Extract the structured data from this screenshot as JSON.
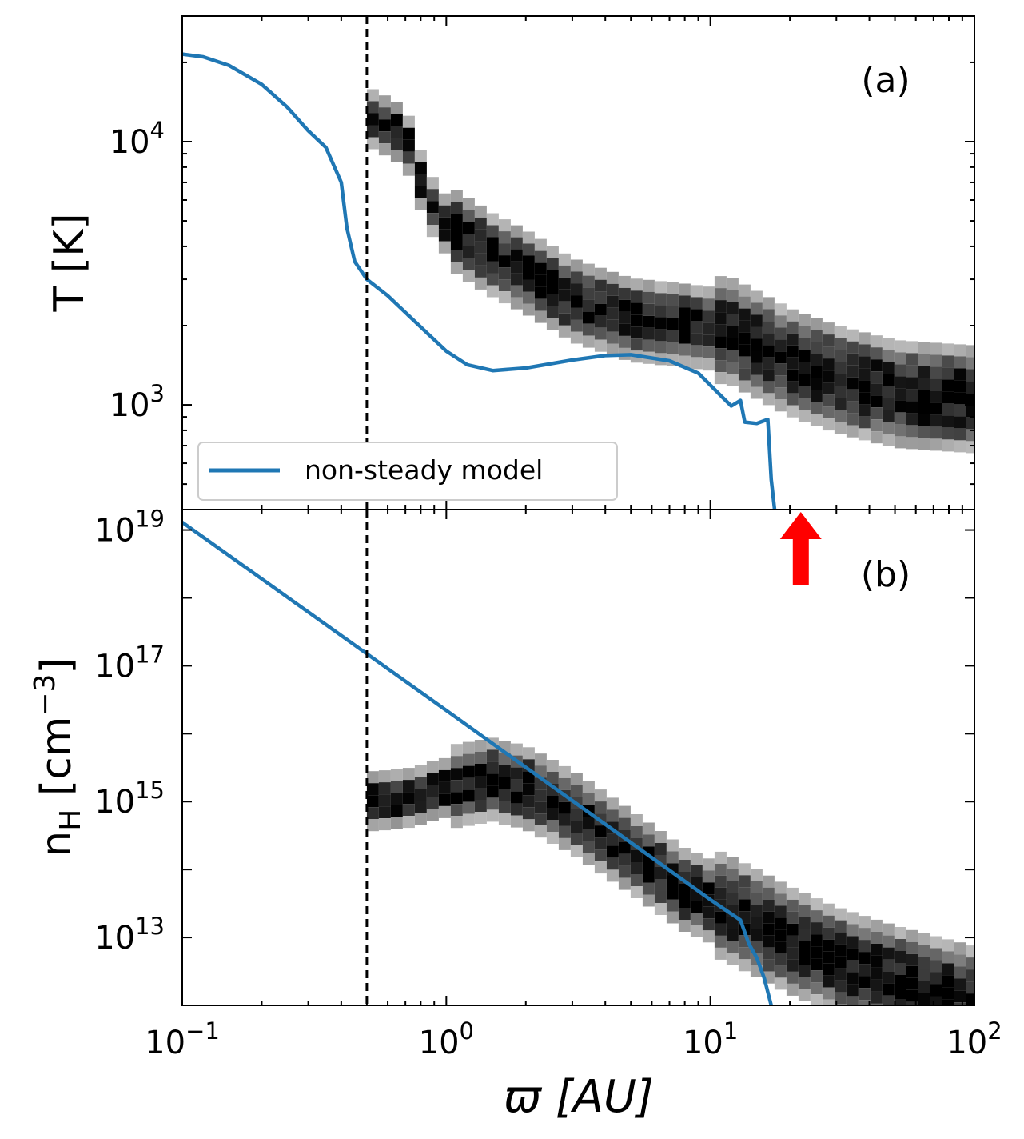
{
  "colors": {
    "model_line": "#1f77b4",
    "sim_heatmap": "#000000",
    "marker_line": "#000000",
    "arrow": "#ff0000",
    "frame": "#000000",
    "legend_border": "#cccccc"
  },
  "chart_data": [
    {
      "type": "line",
      "panel_label": "(a)",
      "xscale": "log",
      "yscale": "log",
      "xlim": [
        0.1,
        100
      ],
      "ylim": [
        400,
        30000
      ],
      "ylabel": "T [K]",
      "yticks": [
        {
          "value": 1000,
          "base": "10",
          "exp": "3"
        },
        {
          "value": 10000,
          "base": "10",
          "exp": "4"
        }
      ],
      "legend": {
        "placement": "lower-left",
        "entries": [
          "non-steady model"
        ]
      },
      "vline_x": 0.5,
      "series": [
        {
          "name": "non-steady model",
          "style": "solid",
          "points": [
            [
              0.1,
              21500
            ],
            [
              0.12,
              21000
            ],
            [
              0.15,
              19500
            ],
            [
              0.2,
              16500
            ],
            [
              0.25,
              13500
            ],
            [
              0.3,
              11000
            ],
            [
              0.35,
              9500
            ],
            [
              0.4,
              7000
            ],
            [
              0.42,
              4700
            ],
            [
              0.45,
              3500
            ],
            [
              0.5,
              3000
            ],
            [
              0.6,
              2600
            ],
            [
              0.75,
              2100
            ],
            [
              1.0,
              1600
            ],
            [
              1.2,
              1420
            ],
            [
              1.5,
              1350
            ],
            [
              2.0,
              1380
            ],
            [
              3.0,
              1480
            ],
            [
              4.0,
              1540
            ],
            [
              5.0,
              1550
            ],
            [
              7.0,
              1470
            ],
            [
              9.0,
              1320
            ],
            [
              11.0,
              1080
            ],
            [
              12.0,
              990
            ],
            [
              13.0,
              1040
            ],
            [
              13.5,
              860
            ],
            [
              15.0,
              850
            ],
            [
              16.5,
              880
            ],
            [
              17.0,
              520
            ],
            [
              17.5,
              400
            ]
          ]
        }
      ],
      "sim_ridge": {
        "description_free": true,
        "points": [
          [
            0.5,
            12500
          ],
          [
            0.7,
            10500
          ],
          [
            0.85,
            6000
          ],
          [
            1.0,
            4800
          ],
          [
            1.5,
            3700
          ],
          [
            2.0,
            3200
          ],
          [
            3.0,
            2500
          ],
          [
            5.0,
            2100
          ],
          [
            8.0,
            2000
          ],
          [
            12.0,
            1900
          ],
          [
            20.0,
            1450
          ],
          [
            30.0,
            1250
          ],
          [
            50.0,
            1100
          ],
          [
            100.0,
            1050
          ]
        ]
      },
      "annotation_arrow": {
        "x": 22,
        "direction": "up"
      }
    },
    {
      "type": "line",
      "panel_label": "(b)",
      "xscale": "log",
      "yscale": "log",
      "xlim": [
        0.1,
        100
      ],
      "ylim": [
        1000000000000.0,
        2e+19
      ],
      "xlabel": "ϖ [AU]",
      "ylabel": {
        "base": "n",
        "sub": "H",
        "rest": " [cm",
        "sup": "−3",
        "close": "]"
      },
      "xticks": [
        {
          "value": 0.1,
          "base": "10",
          "exp": "−1"
        },
        {
          "value": 1,
          "base": "10",
          "exp": "0"
        },
        {
          "value": 10,
          "base": "10",
          "exp": "1"
        },
        {
          "value": 100,
          "base": "10",
          "exp": "2"
        }
      ],
      "yticks": [
        {
          "value": 10000000000000.0,
          "base": "10",
          "exp": "13"
        },
        {
          "value": 1000000000000000.0,
          "base": "10",
          "exp": "15"
        },
        {
          "value": 1e+17,
          "base": "10",
          "exp": "17"
        },
        {
          "value": 1e+19,
          "base": "10",
          "exp": "19"
        }
      ],
      "vline_x": 0.5,
      "series": [
        {
          "name": "non-steady model",
          "style": "solid",
          "points": [
            [
              0.1,
              1.3e+19
            ],
            [
              1.0,
              2.2e+16
            ],
            [
              10.0,
              36000000000000.0
            ],
            [
              13.0,
              18000000000000.0
            ],
            [
              14.0,
              8000000000000.0
            ],
            [
              15.0,
              5000000000000.0
            ],
            [
              16.0,
              2500000000000.0
            ],
            [
              17.0,
              1000000000000.0
            ]
          ]
        }
      ],
      "sim_ridge": {
        "points": [
          [
            0.5,
            1000000000000000.0
          ],
          [
            0.7,
            1100000000000000.0
          ],
          [
            1.0,
            1600000000000000.0
          ],
          [
            1.5,
            2100000000000000.0
          ],
          [
            2.0,
            1600000000000000.0
          ],
          [
            3.0,
            700000000000000.0
          ],
          [
            5.0,
            180000000000000.0
          ],
          [
            8.0,
            50000000000000.0
          ],
          [
            12.0,
            25000000000000.0
          ],
          [
            20.0,
            9000000000000.0
          ],
          [
            30.0,
            4500000000000.0
          ],
          [
            50.0,
            2400000000000.0
          ],
          [
            100.0,
            1200000000000.0
          ]
        ]
      }
    }
  ]
}
